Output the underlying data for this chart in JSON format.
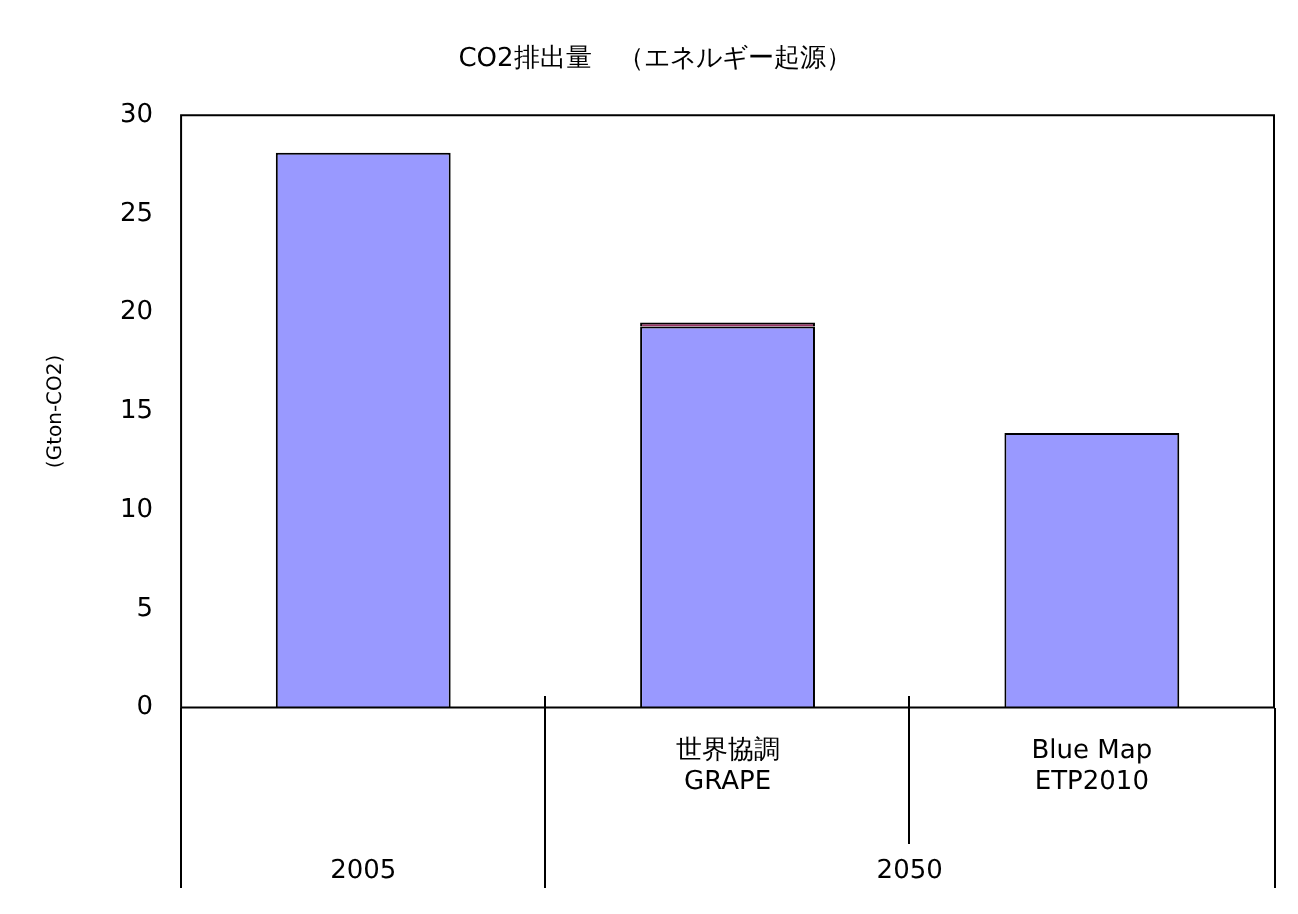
{
  "chart_data": {
    "type": "bar",
    "stacked": true,
    "title": "CO2排出量　（エネルギー起源）",
    "ylabel": "(Gton-CO2)",
    "categories": [
      null,
      "世界協調\nGRAPE",
      "Blue Map\nETP2010"
    ],
    "series": [
      {
        "color": "#9999ff",
        "values": [
          28.1,
          19.3,
          13.9
        ]
      },
      {
        "color": "#993366",
        "values": [
          null,
          0.2,
          null
        ]
      }
    ],
    "ylim": [
      0,
      30
    ],
    "yticks": [
      0,
      5,
      10,
      15,
      20,
      25,
      30
    ],
    "grid": false,
    "legend": false,
    "annotations": [
      "2005",
      "2050"
    ]
  }
}
